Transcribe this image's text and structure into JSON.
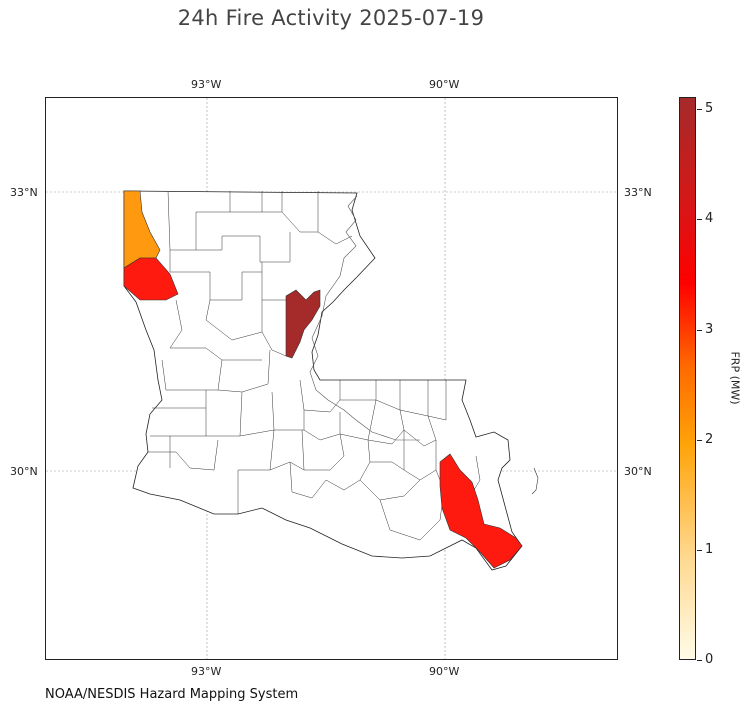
{
  "title": "24h Fire Activity 2025-07-19",
  "map": {
    "longitude_ticks": [
      "93°W",
      "90°W"
    ],
    "latitude_ticks": [
      "33°N",
      "30°N"
    ],
    "region": "Louisiana parishes",
    "gridlines": true
  },
  "colorbar": {
    "label": "FRP (MW)",
    "ticks": [
      "0",
      "1",
      "2",
      "3",
      "4",
      "5"
    ],
    "range": [
      0,
      5.1
    ],
    "colors": [
      "#fffbe8",
      "#ffd990",
      "#ffa40a",
      "#ff6a00",
      "#ff0000",
      "#a52a2a"
    ]
  },
  "highlighted_regions": [
    {
      "name": "northwest-parish-upper",
      "frp": 1.9,
      "color": "#ff9a10"
    },
    {
      "name": "northwest-parish-lower",
      "frp": 3.6,
      "color": "#ff1a10"
    },
    {
      "name": "northeast-central-parish",
      "frp": 5.0,
      "color": "#a52a2a"
    },
    {
      "name": "southeast-delta-parish",
      "frp": 3.6,
      "color": "#ff1a10"
    }
  ],
  "source": "NOAA/NESDIS Hazard Mapping System"
}
